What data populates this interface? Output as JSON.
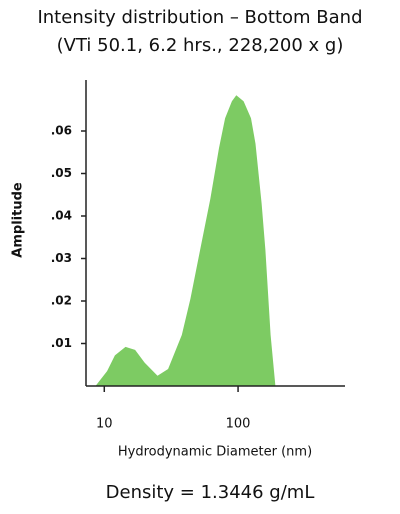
{
  "chart_data": {
    "type": "area",
    "title": "Intensity distribution – Bottom Band",
    "subtitle": "(VTi 50.1, 6.2 hrs., 228,200 x g)",
    "x_label": "Hydrodynamic Diameter (nm)",
    "y_label": "Amplitude",
    "annotation": "Density = 1.3446 g/mL",
    "x_log_scale": true,
    "x": [
      8.6,
      10.5,
      12,
      14.4,
      17,
      20,
      25,
      30,
      38,
      44,
      52,
      62,
      72,
      80,
      90,
      97,
      110,
      125,
      135,
      150,
      160,
      175,
      190
    ],
    "values": [
      0,
      0.0035,
      0.0072,
      0.0092,
      0.0085,
      0.0055,
      0.0024,
      0.004,
      0.012,
      0.0205,
      0.032,
      0.044,
      0.056,
      0.063,
      0.067,
      0.0684,
      0.067,
      0.063,
      0.057,
      0.043,
      0.032,
      0.012,
      0
    ],
    "color": "#7dcb63",
    "xlim": [
      7.3,
      630
    ],
    "xticks": [
      10,
      100
    ],
    "ylim": [
      0,
      0.072
    ],
    "yticks": [
      {
        "value": 0.01,
        "label": ".01"
      },
      {
        "value": 0.02,
        "label": ".02"
      },
      {
        "value": 0.03,
        "label": ".03"
      },
      {
        "value": 0.04,
        "label": ".04"
      },
      {
        "value": 0.05,
        "label": ".05"
      },
      {
        "value": 0.06,
        "label": ".06"
      }
    ]
  }
}
